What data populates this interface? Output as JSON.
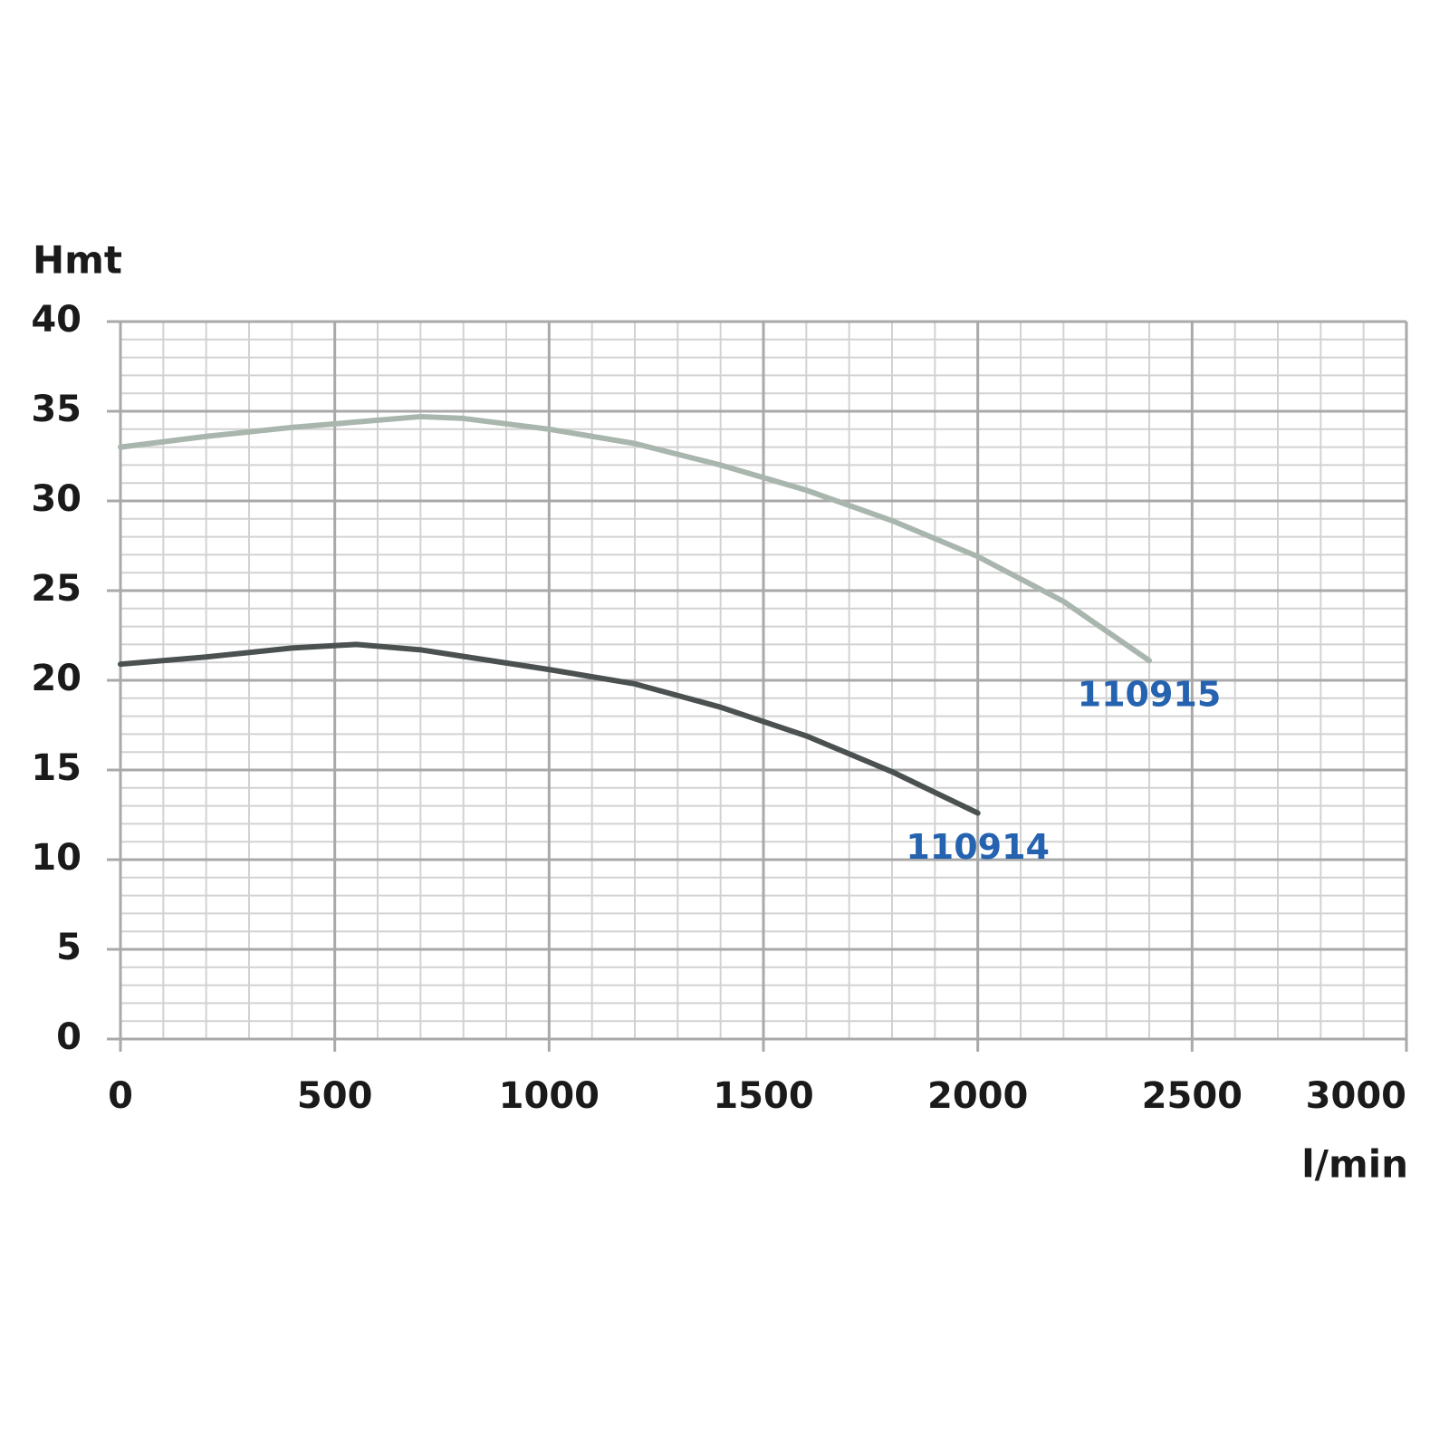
{
  "chart_data": {
    "type": "line",
    "y_label": "Hmt",
    "x_label": "l/min",
    "xlim": [
      0,
      3000
    ],
    "xticks": [
      0,
      500,
      1000,
      1500,
      2000,
      2500,
      3000
    ],
    "ylim": [
      0,
      40
    ],
    "yticks": [
      0,
      5,
      10,
      15,
      20,
      25,
      30,
      35,
      40
    ],
    "grid": true,
    "minor_grid": {
      "x": 100,
      "y": 1
    },
    "series": [
      {
        "name": "110915",
        "color": "#a9b6ae",
        "x": [
          0,
          200,
          400,
          600,
          700,
          800,
          1000,
          1200,
          1400,
          1600,
          1800,
          2000,
          2200,
          2400
        ],
        "values": [
          33,
          33.6,
          34.1,
          34.5,
          34.7,
          34.6,
          34.0,
          33.2,
          32.0,
          30.6,
          28.9,
          26.9,
          24.4,
          21.1
        ]
      },
      {
        "name": "110914",
        "color": "#4b5050",
        "x": [
          0,
          200,
          400,
          550,
          700,
          1000,
          1200,
          1400,
          1600,
          1800,
          2000
        ],
        "values": [
          20.9,
          21.3,
          21.8,
          22.0,
          21.7,
          20.6,
          19.8,
          18.5,
          16.9,
          14.9,
          12.6
        ]
      }
    ]
  }
}
